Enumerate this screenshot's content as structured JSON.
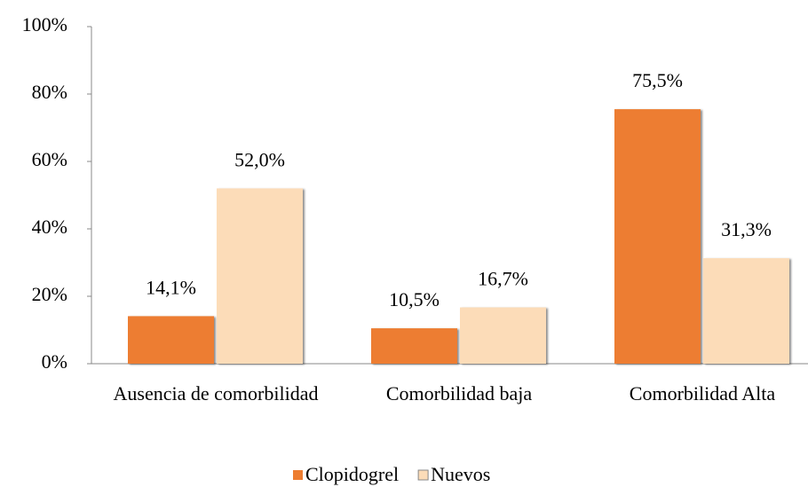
{
  "chart_data": {
    "type": "bar",
    "categories": [
      "Ausencia de comorbilidad",
      "Comorbilidad baja",
      "Comorbilidad Alta"
    ],
    "series": [
      {
        "name": "Clopidogrel",
        "color": "#ed7d31",
        "values": [
          14.1,
          10.5,
          75.5
        ],
        "value_labels": [
          "14,1%",
          "10,5%",
          "75,5%"
        ]
      },
      {
        "name": "Nuevos",
        "color": "#fcdcb8",
        "values": [
          52.0,
          16.7,
          31.3
        ],
        "value_labels": [
          "52,0%",
          "16,7%",
          "31,3%"
        ]
      }
    ],
    "ylim": [
      0,
      100
    ],
    "yticks": [
      {
        "value": 0,
        "label": "0%"
      },
      {
        "value": 20,
        "label": "20%"
      },
      {
        "value": 40,
        "label": "40%"
      },
      {
        "value": 60,
        "label": "60%"
      },
      {
        "value": 80,
        "label": "80%"
      },
      {
        "value": 100,
        "label": "100%"
      }
    ],
    "legend": "bottom"
  }
}
